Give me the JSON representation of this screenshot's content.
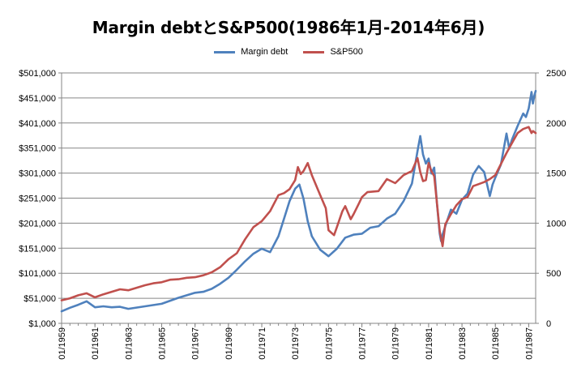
{
  "chart_data": {
    "type": "line",
    "title": "Margin debtとS&P500(1986年1月-2014年6月)",
    "xlabel": "",
    "ylabel_left": "",
    "ylabel_right": "",
    "legend_position": "top",
    "grid": "horizontal",
    "x_tick_labels": [
      "01/1959",
      "01/1961",
      "01/1963",
      "01/1965",
      "01/1967",
      "01/1969",
      "01/1971",
      "01/1973",
      "01/1975",
      "01/1977",
      "01/1979",
      "01/1981",
      "01/1983",
      "01/1985",
      "01/1987"
    ],
    "y_left_tick_labels": [
      "$1,000",
      "$51,000",
      "$101,000",
      "$151,000",
      "$201,000",
      "$251,000",
      "$301,000",
      "$351,000",
      "$401,000",
      "$451,000",
      "$501,000"
    ],
    "y_right_tick_labels": [
      "0",
      "500",
      "1000",
      "1500",
      "2000",
      "2500"
    ],
    "ylim_left": [
      1000,
      501000
    ],
    "ylim_right": [
      0,
      2500
    ],
    "x_tick_positions": [
      0,
      24,
      48,
      72,
      96,
      120,
      144,
      168,
      192,
      216,
      240,
      264,
      288,
      312,
      336
    ],
    "xlim": [
      0,
      341
    ],
    "series": [
      {
        "name": "Margin debt",
        "axis": "left",
        "color": "#4F81BD",
        "x": [
          0,
          6,
          12,
          18,
          24,
          30,
          36,
          42,
          48,
          60,
          72,
          84,
          96,
          102,
          108,
          114,
          120,
          126,
          132,
          138,
          144,
          150,
          156,
          160,
          164,
          168,
          171,
          174,
          177,
          180,
          186,
          192,
          198,
          204,
          210,
          216,
          222,
          228,
          234,
          240,
          246,
          252,
          256,
          258,
          260,
          262,
          264,
          266,
          268,
          270,
          272,
          273,
          274,
          276,
          280,
          284,
          288,
          292,
          296,
          300,
          304,
          308,
          310,
          312,
          316,
          320,
          322,
          324,
          328,
          332,
          334,
          336,
          338,
          339,
          340,
          341
        ],
        "y": [
          25000,
          32000,
          38000,
          45000,
          33000,
          35000,
          33000,
          34000,
          30000,
          35000,
          40000,
          52000,
          62000,
          64000,
          70000,
          80000,
          92000,
          108000,
          125000,
          140000,
          150000,
          143000,
          175000,
          210000,
          245000,
          270000,
          278000,
          250000,
          205000,
          175000,
          148000,
          135000,
          150000,
          172000,
          178000,
          180000,
          192000,
          195000,
          210000,
          220000,
          245000,
          280000,
          345000,
          375000,
          338000,
          320000,
          330000,
          300000,
          312000,
          240000,
          180000,
          165000,
          178000,
          195000,
          228000,
          220000,
          248000,
          260000,
          298000,
          315000,
          303000,
          255000,
          278000,
          292000,
          318000,
          380000,
          350000,
          368000,
          395000,
          420000,
          413000,
          430000,
          463000,
          440000,
          455000,
          465000
        ]
      },
      {
        "name": "S&P500",
        "axis": "right",
        "color": "#C0504D",
        "x": [
          0,
          6,
          12,
          18,
          24,
          30,
          36,
          42,
          48,
          54,
          60,
          66,
          72,
          78,
          84,
          90,
          96,
          102,
          108,
          114,
          120,
          126,
          132,
          138,
          144,
          150,
          156,
          160,
          164,
          168,
          170,
          172,
          174,
          177,
          180,
          186,
          190,
          192,
          196,
          198,
          202,
          204,
          208,
          210,
          214,
          216,
          220,
          228,
          234,
          240,
          246,
          252,
          256,
          258,
          260,
          262,
          264,
          266,
          268,
          270,
          272,
          274,
          276,
          280,
          284,
          288,
          292,
          296,
          300,
          304,
          308,
          312,
          316,
          320,
          324,
          328,
          332,
          336,
          338,
          339,
          341
        ],
        "y": [
          230,
          250,
          280,
          300,
          260,
          290,
          315,
          340,
          330,
          355,
          380,
          400,
          410,
          435,
          440,
          455,
          460,
          480,
          510,
          560,
          640,
          700,
          840,
          960,
          1020,
          1120,
          1280,
          1300,
          1340,
          1430,
          1560,
          1490,
          1520,
          1600,
          1480,
          1280,
          1150,
          930,
          880,
          960,
          1120,
          1170,
          1040,
          1090,
          1200,
          1260,
          1310,
          1320,
          1440,
          1400,
          1480,
          1520,
          1650,
          1510,
          1420,
          1430,
          1600,
          1520,
          1470,
          1200,
          920,
          770,
          990,
          1090,
          1180,
          1240,
          1260,
          1370,
          1390,
          1410,
          1440,
          1480,
          1590,
          1700,
          1800,
          1900,
          1940,
          1960,
          1900,
          1920,
          1900
        ]
      }
    ]
  }
}
